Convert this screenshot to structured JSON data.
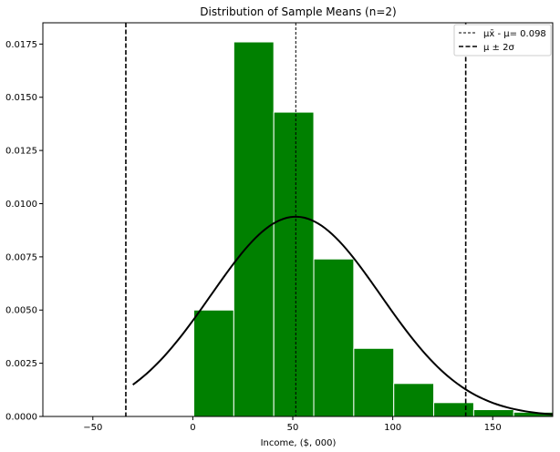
{
  "chart_data": {
    "type": "bar",
    "title": "Distribution of Sample Means (n=2)",
    "xlabel": "Income, ($, 000)",
    "ylabel": "",
    "xlim": [
      -75,
      180
    ],
    "ylim": [
      0,
      0.0185
    ],
    "xticks": [
      -50,
      0,
      50,
      100,
      150
    ],
    "yticks": [
      0.0,
      0.0025,
      0.005,
      0.0075,
      0.01,
      0.0125,
      0.015,
      0.0175
    ],
    "xtick_labels": [
      "−50",
      "0",
      "50",
      "100",
      "150"
    ],
    "ytick_labels": [
      "0.0000",
      "0.0025",
      "0.0050",
      "0.0075",
      "0.0100",
      "0.0125",
      "0.0150",
      "0.0175"
    ],
    "grid": false,
    "legend_position": "top-right",
    "histogram": {
      "color": "#008000",
      "edge_color": "#ffffff",
      "bins": [
        {
          "start": 0.5,
          "end": 20.5,
          "value": 0.005
        },
        {
          "start": 20.5,
          "end": 40.5,
          "value": 0.0176
        },
        {
          "start": 40.5,
          "end": 60.5,
          "value": 0.0143
        },
        {
          "start": 60.5,
          "end": 80.5,
          "value": 0.0074
        },
        {
          "start": 80.5,
          "end": 100.5,
          "value": 0.0032
        },
        {
          "start": 100.5,
          "end": 120.5,
          "value": 0.00155
        },
        {
          "start": 120.5,
          "end": 140.5,
          "value": 0.00065
        },
        {
          "start": 140.5,
          "end": 160.5,
          "value": 0.00032
        },
        {
          "start": 160.5,
          "end": 180.5,
          "value": 0.0002
        }
      ]
    },
    "normal_curve": {
      "mean": 51.5,
      "sd": 42.5,
      "x_start": -30,
      "x_end": 180,
      "color": "#000000"
    },
    "mean_line": {
      "x": 51.5,
      "label": "μx̄ - μ= 0.098",
      "style": "dashed-thin",
      "color": "#000000"
    },
    "sigma_lines": {
      "x": [
        -33.5,
        136.5
      ],
      "label": "μ ± 2σ",
      "style": "dashed-thick",
      "color": "#000000"
    }
  }
}
